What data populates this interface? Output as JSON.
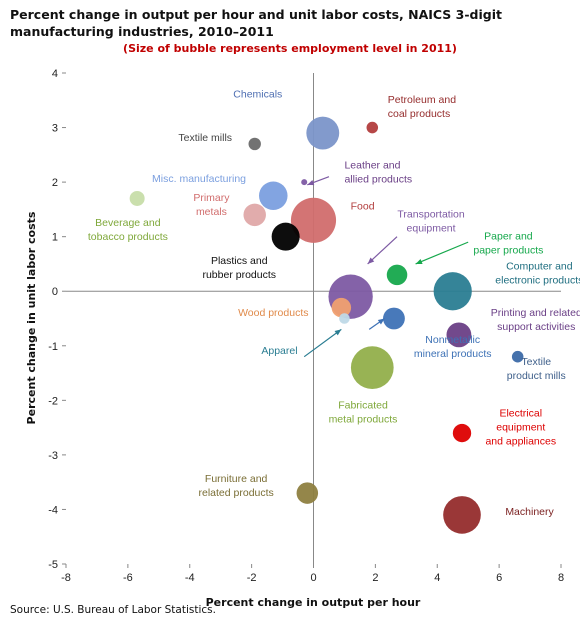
{
  "chart_data": {
    "type": "scatter",
    "title": "Percent change in output per hour and unit labor costs, NAICS 3-digit manufacturing industries, 2010–2011",
    "subtitle": "(Size of bubble represents employment level in 2011)",
    "xlabel": "Percent change in output per hour",
    "ylabel": "Percent change in unit labor costs",
    "xlim": [
      -8,
      8
    ],
    "ylim": [
      -5,
      4
    ],
    "xticks": [
      "-8",
      "-6",
      "-4",
      "-2",
      "0",
      "2",
      "4",
      "6",
      "8"
    ],
    "yticks": [
      "4",
      "3",
      "2",
      "1",
      "0",
      "-1",
      "-2",
      "-3",
      "-4",
      "-5"
    ],
    "grid": false,
    "points": [
      {
        "name": "Computer and electronic products",
        "x": 4.5,
        "y": 0.0,
        "size": 1040,
        "color": "#2a7d92"
      },
      {
        "name": "Transportation equipment",
        "x": 1.2,
        "y": -0.1,
        "size": 1400,
        "color": "#7d5aa3"
      },
      {
        "name": "Food",
        "x": 0.0,
        "y": 1.3,
        "size": 1450,
        "color": "#d16d6d"
      },
      {
        "name": "Fabricated metal products",
        "x": 1.9,
        "y": -1.4,
        "size": 1300,
        "color": "#92af4b"
      },
      {
        "name": "Machinery",
        "x": 4.8,
        "y": -4.1,
        "size": 1010,
        "color": "#952c2c"
      },
      {
        "name": "Chemicals",
        "x": 0.3,
        "y": 2.9,
        "size": 770,
        "color": "#7b95c9"
      },
      {
        "name": "Misc. manufacturing",
        "x": -1.3,
        "y": 1.75,
        "size": 580,
        "color": "#7b9fdf"
      },
      {
        "name": "Plastics and rubber products",
        "x": -0.9,
        "y": 1.0,
        "size": 560,
        "color": "#000000"
      },
      {
        "name": "Printing and related support activities",
        "x": 4.7,
        "y": -0.8,
        "size": 440,
        "color": "#6a3f86"
      },
      {
        "name": "Primary metals",
        "x": -1.9,
        "y": 1.4,
        "size": 360,
        "color": "#dfa8a8"
      },
      {
        "name": "Paper and paper products",
        "x": 2.7,
        "y": 0.3,
        "size": 300,
        "color": "#16a84c"
      },
      {
        "name": "Nonmetallic mineral products",
        "x": 2.6,
        "y": -0.5,
        "size": 340,
        "color": "#3e72b6"
      },
      {
        "name": "Furniture and related products",
        "x": -0.2,
        "y": -3.7,
        "size": 330,
        "color": "#8e8040"
      },
      {
        "name": "Wood products",
        "x": 0.9,
        "y": -0.3,
        "size": 270,
        "color": "#f0a070"
      },
      {
        "name": "Electrical equipment and appliances",
        "x": 4.8,
        "y": -2.6,
        "size": 240,
        "color": "#dd0000"
      },
      {
        "name": "Beverage and tobacco products",
        "x": -5.7,
        "y": 1.7,
        "size": 160,
        "color": "#c7dda9"
      },
      {
        "name": "Textile mills",
        "x": -1.9,
        "y": 2.7,
        "size": 110,
        "color": "#6a6a6a"
      },
      {
        "name": "Textile product mills",
        "x": 6.6,
        "y": -1.2,
        "size": 95,
        "color": "#3c6aa8"
      },
      {
        "name": "Apparel",
        "x": 1.0,
        "y": -0.5,
        "size": 80,
        "color": "#bfd9e7"
      },
      {
        "name": "Petroleum and coal products",
        "x": 1.9,
        "y": 3.0,
        "size": 95,
        "color": "#b23d3d"
      },
      {
        "name": "Leather and allied products",
        "x": -0.3,
        "y": 2.0,
        "size": 15,
        "color": "#7d5aa3"
      }
    ],
    "labels": [
      {
        "lines": [
          "Chemicals"
        ],
        "color": "#4f6fb2",
        "anchor": "middle",
        "x": -1.8,
        "y": 3.55
      },
      {
        "lines": [
          "Textile mills"
        ],
        "color": "#444444",
        "anchor": "middle",
        "x": -3.5,
        "y": 2.75
      },
      {
        "lines": [
          "Petroleum and",
          "coal products"
        ],
        "color": "#952c2c",
        "anchor": "start",
        "x": 2.4,
        "y": 3.45
      },
      {
        "lines": [
          "Leather and",
          "allied products"
        ],
        "color": "#6a3f86",
        "anchor": "start",
        "x": 1.0,
        "y": 2.25
      },
      {
        "lines": [
          "Misc. manufacturing"
        ],
        "color": "#7b9fdf",
        "anchor": "middle",
        "x": -3.7,
        "y": 2.0
      },
      {
        "lines": [
          "Beverage and",
          "tobacco products"
        ],
        "color": "#7fa83a",
        "anchor": "middle",
        "x": -6.0,
        "y": 1.2
      },
      {
        "lines": [
          "Primary",
          "metals"
        ],
        "color": "#d16d6d",
        "anchor": "middle",
        "x": -3.3,
        "y": 1.65
      },
      {
        "lines": [
          "Food"
        ],
        "color": "#b23d3d",
        "anchor": "start",
        "x": 1.2,
        "y": 1.5
      },
      {
        "lines": [
          "Transportation",
          "equipment"
        ],
        "color": "#7d5aa3",
        "anchor": "middle",
        "x": 3.8,
        "y": 1.35
      },
      {
        "lines": [
          "Paper and",
          "paper products"
        ],
        "color": "#16a84c",
        "anchor": "middle",
        "x": 6.3,
        "y": 0.95
      },
      {
        "lines": [
          "Plastics and",
          "rubber products"
        ],
        "color": "#111111",
        "anchor": "middle",
        "x": -2.4,
        "y": 0.5
      },
      {
        "lines": [
          "Computer and",
          "electronic products"
        ],
        "color": "#1f6e80",
        "anchor": "middle",
        "x": 7.3,
        "y": 0.4
      },
      {
        "lines": [
          "Printing and related",
          "support activities"
        ],
        "color": "#6a3f86",
        "anchor": "middle",
        "x": 7.2,
        "y": -0.45
      },
      {
        "lines": [
          "Wood products"
        ],
        "color": "#e08a4a",
        "anchor": "middle",
        "x": -1.3,
        "y": -0.45
      },
      {
        "lines": [
          "Apparel"
        ],
        "color": "#2a7d92",
        "anchor": "middle",
        "x": -1.1,
        "y": -1.15
      },
      {
        "lines": [
          "Nonmetallic",
          "mineral products"
        ],
        "color": "#3e72b6",
        "anchor": "middle",
        "x": 4.5,
        "y": -0.95
      },
      {
        "lines": [
          "Textile",
          "product mills"
        ],
        "color": "#3e5f8a",
        "anchor": "middle",
        "x": 7.2,
        "y": -1.35
      },
      {
        "lines": [
          "Fabricated",
          "metal products"
        ],
        "color": "#7fa83a",
        "anchor": "middle",
        "x": 1.6,
        "y": -2.15
      },
      {
        "lines": [
          "Electrical",
          "equipment",
          "and appliances"
        ],
        "color": "#dd0000",
        "anchor": "middle",
        "x": 6.7,
        "y": -2.3
      },
      {
        "lines": [
          "Furniture and",
          "related products"
        ],
        "color": "#7a6e35",
        "anchor": "middle",
        "x": -2.5,
        "y": -3.5
      },
      {
        "lines": [
          "Machinery"
        ],
        "color": "#7a1f1f",
        "anchor": "start",
        "x": 6.2,
        "y": -4.1
      }
    ],
    "leaders": [
      {
        "from": [
          0.5,
          2.1
        ],
        "to": [
          -0.2,
          1.95
        ],
        "color": "#7d5aa3"
      },
      {
        "from": [
          2.7,
          1.0
        ],
        "to": [
          1.75,
          0.5
        ],
        "color": "#7d5aa3"
      },
      {
        "from": [
          5.0,
          0.9
        ],
        "to": [
          3.3,
          0.5
        ],
        "color": "#16a84c"
      },
      {
        "from": [
          -0.3,
          -1.2
        ],
        "to": [
          0.9,
          -0.7
        ],
        "color": "#2a7d92"
      },
      {
        "from": [
          1.8,
          -0.7
        ],
        "to": [
          2.3,
          -0.5
        ],
        "color": "#3e72b6"
      }
    ]
  },
  "source": "Source: U.S. Bureau of Labor Statistics."
}
